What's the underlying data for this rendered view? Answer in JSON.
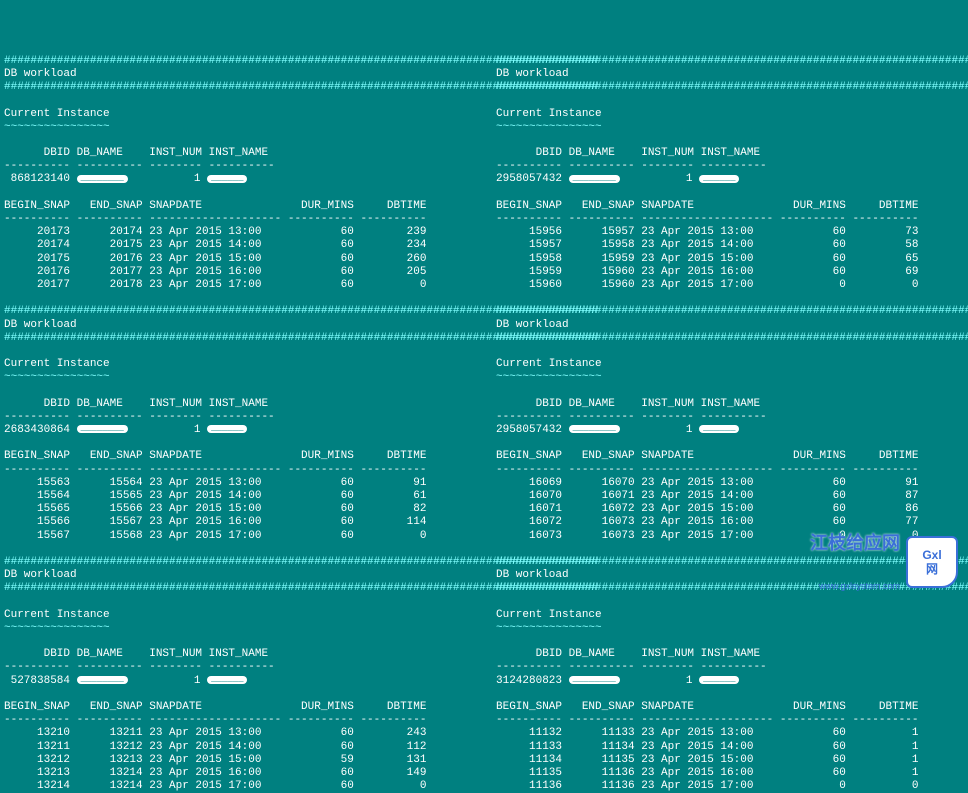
{
  "background_color": "#008080",
  "text_color": "#ffffff",
  "accent_color": "#80ffff",
  "hash_line": "##########################################################################################",
  "dash_line_inst": "---------- ---------- -------- ----------",
  "dash_line_snap": "---------- ---------- -------------------- ---------- ----------",
  "section_title": "DB workload",
  "current_instance_label": "Current Instance",
  "tilde_line": "~~~~~~~~~~~~~~~~",
  "inst_header": "      DBID DB_NAME    INST_NUM INST_NAME",
  "snap_header": "BEGIN_SNAP   END_SNAP SNAPDATE               DUR_MINS     DBTIME",
  "watermark": {
    "text": "江枝给应网",
    "url": "www.gxlsystem.com",
    "badge_line1": "Gxl",
    "badge_line2": "网"
  },
  "panels": [
    {
      "dbid": " 868123140",
      "inst_num": "1",
      "rows": [
        {
          "b": "     20173",
          "e": "     20174",
          "d": "23 Apr 2015 13:00",
          "m": "        60",
          "t": "       239"
        },
        {
          "b": "     20174",
          "e": "     20175",
          "d": "23 Apr 2015 14:00",
          "m": "        60",
          "t": "       234"
        },
        {
          "b": "     20175",
          "e": "     20176",
          "d": "23 Apr 2015 15:00",
          "m": "        60",
          "t": "       260"
        },
        {
          "b": "     20176",
          "e": "     20177",
          "d": "23 Apr 2015 16:00",
          "m": "        60",
          "t": "       205"
        },
        {
          "b": "     20177",
          "e": "     20178",
          "d": "23 Apr 2015 17:00",
          "m": "        60",
          "t": "         0"
        }
      ]
    },
    {
      "dbid": "2683430864",
      "inst_num": "1",
      "rows": [
        {
          "b": "     15563",
          "e": "     15564",
          "d": "23 Apr 2015 13:00",
          "m": "        60",
          "t": "        91"
        },
        {
          "b": "     15564",
          "e": "     15565",
          "d": "23 Apr 2015 14:00",
          "m": "        60",
          "t": "        61"
        },
        {
          "b": "     15565",
          "e": "     15566",
          "d": "23 Apr 2015 15:00",
          "m": "        60",
          "t": "        82"
        },
        {
          "b": "     15566",
          "e": "     15567",
          "d": "23 Apr 2015 16:00",
          "m": "        60",
          "t": "       114"
        },
        {
          "b": "     15567",
          "e": "     15568",
          "d": "23 Apr 2015 17:00",
          "m": "        60",
          "t": "         0"
        }
      ]
    },
    {
      "dbid": " 527838584",
      "inst_num": "1",
      "rows": [
        {
          "b": "     13210",
          "e": "     13211",
          "d": "23 Apr 2015 13:00",
          "m": "        60",
          "t": "       243"
        },
        {
          "b": "     13211",
          "e": "     13212",
          "d": "23 Apr 2015 14:00",
          "m": "        60",
          "t": "       112"
        },
        {
          "b": "     13212",
          "e": "     13213",
          "d": "23 Apr 2015 15:00",
          "m": "        59",
          "t": "       131"
        },
        {
          "b": "     13213",
          "e": "     13214",
          "d": "23 Apr 2015 16:00",
          "m": "        60",
          "t": "       149"
        },
        {
          "b": "     13214",
          "e": "     13214",
          "d": "23 Apr 2015 17:00",
          "m": "        60",
          "t": "         0"
        }
      ]
    },
    {
      "dbid": "2958057432",
      "inst_num": "1",
      "rows": [
        {
          "b": "     15956",
          "e": "     15957",
          "d": "23 Apr 2015 13:00",
          "m": "        60",
          "t": "        73"
        },
        {
          "b": "     15957",
          "e": "     15958",
          "d": "23 Apr 2015 14:00",
          "m": "        60",
          "t": "        58"
        },
        {
          "b": "     15958",
          "e": "     15959",
          "d": "23 Apr 2015 15:00",
          "m": "        60",
          "t": "        65"
        },
        {
          "b": "     15959",
          "e": "     15960",
          "d": "23 Apr 2015 16:00",
          "m": "        60",
          "t": "        69"
        },
        {
          "b": "     15960",
          "e": "     15960",
          "d": "23 Apr 2015 17:00",
          "m": "         0",
          "t": "         0"
        }
      ]
    },
    {
      "dbid": "2958057432",
      "inst_num": "1",
      "rows": [
        {
          "b": "     16069",
          "e": "     16070",
          "d": "23 Apr 2015 13:00",
          "m": "        60",
          "t": "        91"
        },
        {
          "b": "     16070",
          "e": "     16071",
          "d": "23 Apr 2015 14:00",
          "m": "        60",
          "t": "        87"
        },
        {
          "b": "     16071",
          "e": "     16072",
          "d": "23 Apr 2015 15:00",
          "m": "        60",
          "t": "        86"
        },
        {
          "b": "     16072",
          "e": "     16073",
          "d": "23 Apr 2015 16:00",
          "m": "        60",
          "t": "        77"
        },
        {
          "b": "     16073",
          "e": "     16073",
          "d": "23 Apr 2015 17:00",
          "m": "         0",
          "t": "         0"
        }
      ]
    },
    {
      "dbid": "3124280823",
      "inst_num": "1",
      "rows": [
        {
          "b": "     11132",
          "e": "     11133",
          "d": "23 Apr 2015 13:00",
          "m": "        60",
          "t": "         1"
        },
        {
          "b": "     11133",
          "e": "     11134",
          "d": "23 Apr 2015 14:00",
          "m": "        60",
          "t": "         1"
        },
        {
          "b": "     11134",
          "e": "     11135",
          "d": "23 Apr 2015 15:00",
          "m": "        60",
          "t": "         1"
        },
        {
          "b": "     11135",
          "e": "     11136",
          "d": "23 Apr 2015 16:00",
          "m": "        60",
          "t": "         1"
        },
        {
          "b": "     11136",
          "e": "     11136",
          "d": "23 Apr 2015 17:00",
          "m": "         0",
          "t": "         0"
        }
      ]
    }
  ]
}
